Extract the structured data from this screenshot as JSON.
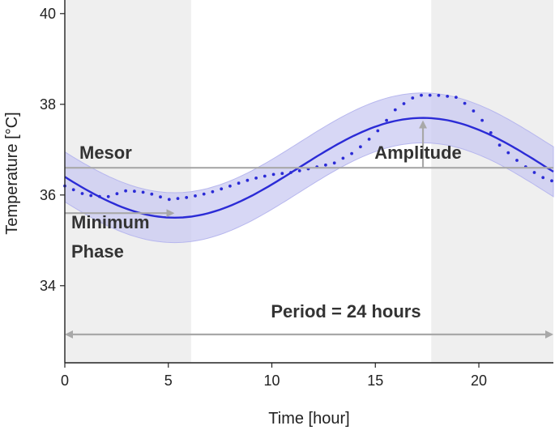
{
  "chart_data": {
    "type": "line",
    "xlabel": "Time [hour]",
    "ylabel": "Temperature [°C]",
    "xlim": [
      0,
      23.6
    ],
    "ylim": [
      32.3,
      40.3
    ],
    "xticks": [
      0,
      5,
      10,
      15,
      20
    ],
    "yticks": [
      34,
      36,
      38,
      40
    ],
    "grid": false,
    "colors": {
      "fit_line": "#2b2bd6",
      "band_fill": "#c9c9f2",
      "dots": "#2b2bd6",
      "shade": "#efefef",
      "annotation": "#a8a8a8",
      "text": "#333333"
    },
    "shaded_regions": [
      {
        "x": [
          0,
          6.1
        ]
      },
      {
        "x": [
          17.7,
          23.6
        ]
      }
    ],
    "cosinor": {
      "mesor": 36.6,
      "amplitude": 1.1,
      "acrophase_hour": 17.3,
      "period_hours": 24,
      "band_halfwidth": 0.55
    },
    "observed": {
      "x": [
        0,
        1,
        2,
        3,
        4,
        5,
        6,
        7,
        8,
        9,
        10,
        11,
        12,
        13,
        14,
        15,
        16,
        17,
        18,
        19,
        20,
        21,
        22,
        23,
        23.6
      ],
      "y": [
        36.2,
        36.0,
        35.95,
        36.1,
        36.05,
        35.9,
        35.95,
        36.05,
        36.2,
        36.35,
        36.45,
        36.5,
        36.6,
        36.7,
        36.95,
        37.35,
        37.9,
        38.2,
        38.2,
        38.15,
        37.75,
        37.1,
        36.7,
        36.4,
        36.3
      ]
    },
    "annotations": {
      "mesor_label": "Mesor",
      "amplitude_label": "Amplitude",
      "minimum_label_line1": "Minimum",
      "minimum_label_line2": "Phase",
      "period_label": "Period = 24 hours"
    }
  }
}
